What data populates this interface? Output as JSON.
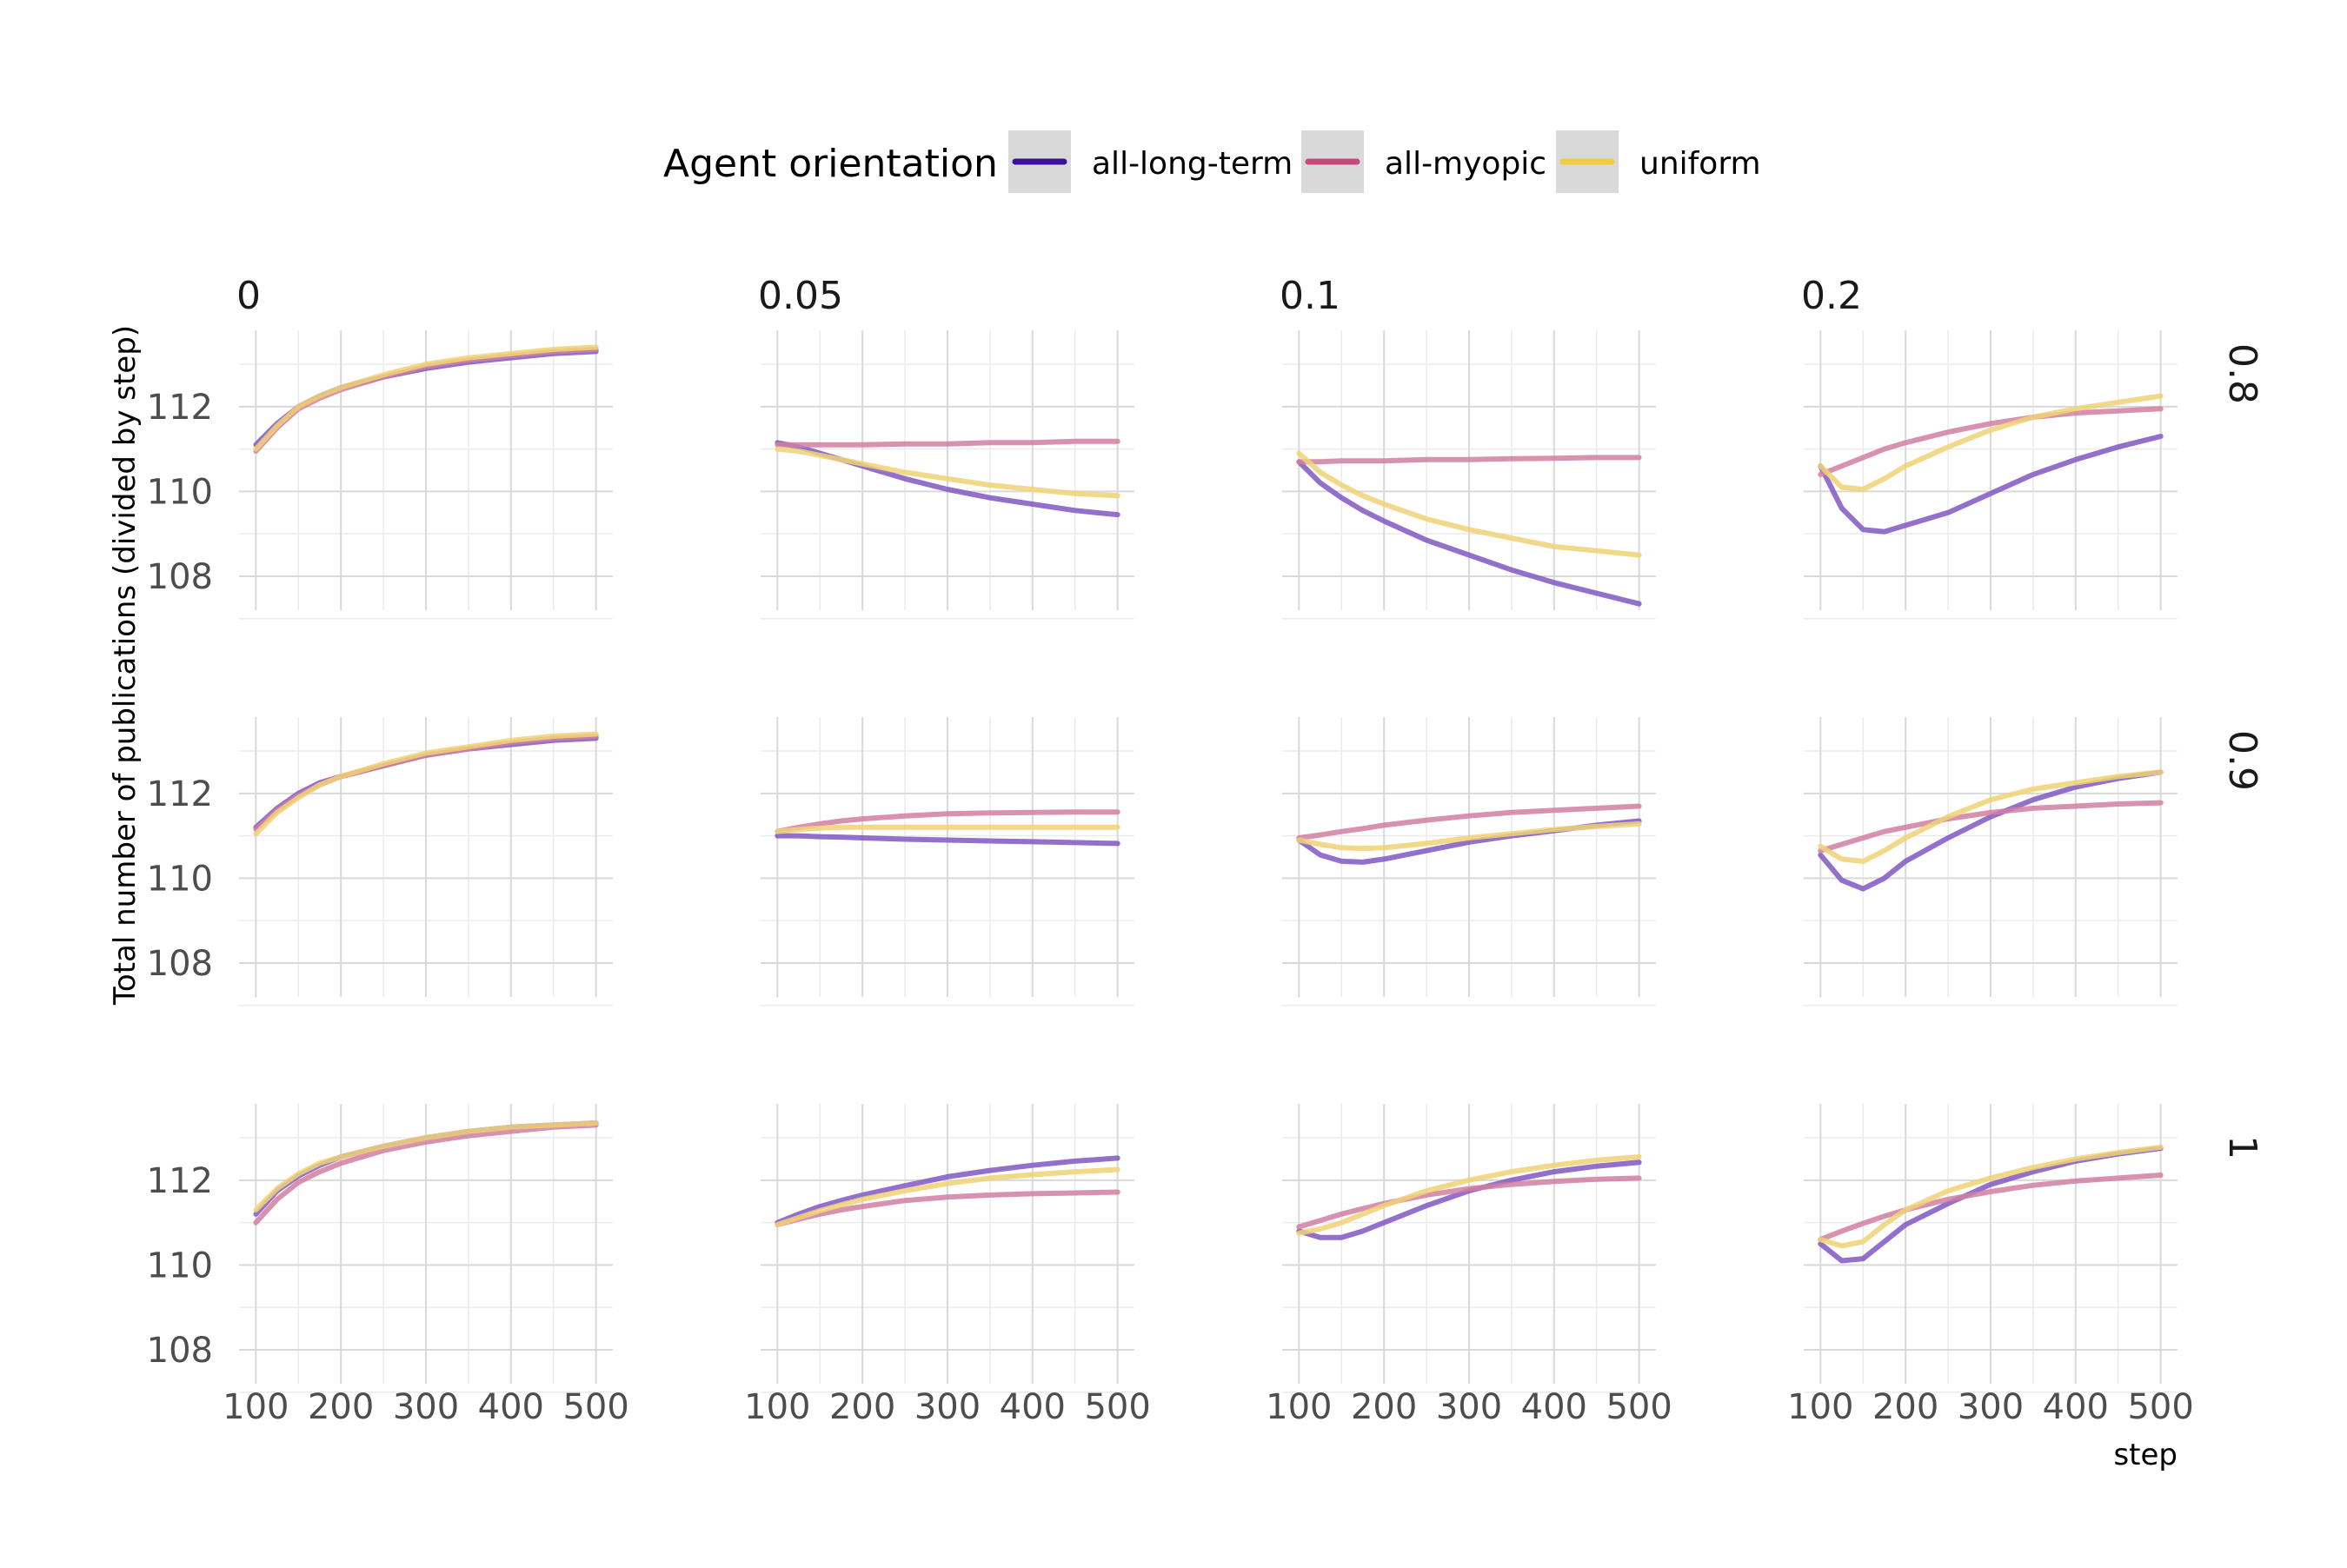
{
  "chart_data": {
    "type": "line",
    "xlabel": "step",
    "ylabel": "Total number of publications (divided by step)",
    "xlim": [
      100,
      500
    ],
    "ylim": [
      107.2,
      113.8
    ],
    "x_ticks": [
      100,
      200,
      300,
      400,
      500
    ],
    "y_ticks": [
      108,
      110,
      112
    ],
    "grid": true,
    "legend": {
      "title": "Agent orientation",
      "placement": "top",
      "entries": [
        {
          "name": "all-long-term",
          "color": "#3e0f99"
        },
        {
          "name": "all-myopic",
          "color": "#c64a7c"
        },
        {
          "name": "uniform",
          "color": "#f2cb3f"
        }
      ]
    },
    "series_colors": {
      "all-long-term": "#7f57c2",
      "all-myopic": "#d17fa2",
      "uniform": "#f0d276"
    },
    "col_labels": [
      "0",
      "0.05",
      "0.1",
      "0.2"
    ],
    "row_labels": [
      "0.8",
      "0.9",
      "1"
    ],
    "x": [
      100,
      125,
      150,
      175,
      200,
      250,
      300,
      350,
      400,
      450,
      500
    ],
    "panels": [
      {
        "col": "0",
        "row": "0.8",
        "series": [
          {
            "name": "all-long-term",
            "values": [
              111.1,
              111.6,
              112.0,
              112.25,
              112.45,
              112.7,
              112.9,
              113.05,
              113.15,
              113.25,
              113.3
            ]
          },
          {
            "name": "all-myopic",
            "values": [
              110.95,
              111.5,
              111.95,
              112.2,
              112.4,
              112.7,
              112.95,
              113.1,
              113.2,
              113.3,
              113.35
            ]
          },
          {
            "name": "uniform",
            "values": [
              111.0,
              111.55,
              112.0,
              112.25,
              112.45,
              112.75,
              113.0,
              113.15,
              113.25,
              113.35,
              113.4
            ]
          }
        ]
      },
      {
        "col": "0.05",
        "row": "0.8",
        "series": [
          {
            "name": "all-long-term",
            "values": [
              111.15,
              111.05,
              110.9,
              110.75,
              110.6,
              110.3,
              110.05,
              109.85,
              109.7,
              109.55,
              109.45
            ]
          },
          {
            "name": "all-myopic",
            "values": [
              111.1,
              111.1,
              111.1,
              111.1,
              111.1,
              111.12,
              111.12,
              111.15,
              111.15,
              111.18,
              111.18
            ]
          },
          {
            "name": "uniform",
            "values": [
              111.0,
              110.95,
              110.85,
              110.75,
              110.65,
              110.45,
              110.3,
              110.15,
              110.05,
              109.95,
              109.9
            ]
          }
        ]
      },
      {
        "col": "0.1",
        "row": "0.8",
        "series": [
          {
            "name": "all-long-term",
            "values": [
              110.7,
              110.2,
              109.85,
              109.55,
              109.3,
              108.85,
              108.5,
              108.15,
              107.85,
              107.6,
              107.35
            ]
          },
          {
            "name": "all-myopic",
            "values": [
              110.7,
              110.7,
              110.72,
              110.72,
              110.72,
              110.75,
              110.75,
              110.77,
              110.78,
              110.8,
              110.8
            ]
          },
          {
            "name": "uniform",
            "values": [
              110.9,
              110.45,
              110.15,
              109.9,
              109.7,
              109.35,
              109.1,
              108.9,
              108.7,
              108.6,
              108.5
            ]
          }
        ]
      },
      {
        "col": "0.2",
        "row": "0.8",
        "series": [
          {
            "name": "all-long-term",
            "values": [
              110.6,
              109.6,
              109.1,
              109.05,
              109.2,
              109.5,
              109.95,
              110.4,
              110.75,
              111.05,
              111.3
            ]
          },
          {
            "name": "all-myopic",
            "values": [
              110.4,
              110.6,
              110.8,
              111.0,
              111.15,
              111.4,
              111.6,
              111.75,
              111.85,
              111.9,
              111.95
            ]
          },
          {
            "name": "uniform",
            "values": [
              110.6,
              110.1,
              110.05,
              110.3,
              110.6,
              111.05,
              111.45,
              111.75,
              111.95,
              112.1,
              112.25
            ]
          }
        ]
      },
      {
        "col": "0",
        "row": "0.9",
        "series": [
          {
            "name": "all-long-term",
            "values": [
              111.2,
              111.65,
              112.0,
              112.25,
              112.4,
              112.65,
              112.9,
              113.05,
              113.15,
              113.25,
              113.3
            ]
          },
          {
            "name": "all-myopic",
            "values": [
              111.15,
              111.6,
              111.95,
              112.2,
              112.4,
              112.65,
              112.9,
              113.05,
              113.2,
              113.3,
              113.35
            ]
          },
          {
            "name": "uniform",
            "values": [
              111.05,
              111.55,
              111.9,
              112.2,
              112.4,
              112.7,
              112.95,
              113.1,
              113.25,
              113.35,
              113.4
            ]
          }
        ]
      },
      {
        "col": "0.05",
        "row": "0.9",
        "series": [
          {
            "name": "all-long-term",
            "values": [
              111.0,
              111.0,
              110.98,
              110.97,
              110.95,
              110.92,
              110.9,
              110.88,
              110.86,
              110.84,
              110.82
            ]
          },
          {
            "name": "all-myopic",
            "values": [
              111.1,
              111.2,
              111.28,
              111.35,
              111.4,
              111.47,
              111.52,
              111.54,
              111.55,
              111.56,
              111.56
            ]
          },
          {
            "name": "uniform",
            "values": [
              111.1,
              111.15,
              111.18,
              111.2,
              111.2,
              111.2,
              111.2,
              111.2,
              111.2,
              111.2,
              111.2
            ]
          }
        ]
      },
      {
        "col": "0.1",
        "row": "0.9",
        "series": [
          {
            "name": "all-long-term",
            "values": [
              110.9,
              110.55,
              110.4,
              110.38,
              110.45,
              110.65,
              110.85,
              111.0,
              111.12,
              111.25,
              111.35
            ]
          },
          {
            "name": "all-myopic",
            "values": [
              110.95,
              111.02,
              111.1,
              111.17,
              111.25,
              111.37,
              111.47,
              111.55,
              111.6,
              111.65,
              111.7
            ]
          },
          {
            "name": "uniform",
            "values": [
              110.9,
              110.8,
              110.72,
              110.7,
              110.72,
              110.82,
              110.95,
              111.05,
              111.15,
              111.22,
              111.28
            ]
          }
        ]
      },
      {
        "col": "0.2",
        "row": "0.9",
        "series": [
          {
            "name": "all-long-term",
            "values": [
              110.55,
              109.95,
              109.75,
              110.0,
              110.4,
              110.95,
              111.45,
              111.85,
              112.15,
              112.35,
              112.5
            ]
          },
          {
            "name": "all-myopic",
            "values": [
              110.65,
              110.8,
              110.95,
              111.1,
              111.2,
              111.4,
              111.55,
              111.65,
              111.7,
              111.75,
              111.78
            ]
          },
          {
            "name": "uniform",
            "values": [
              110.75,
              110.45,
              110.4,
              110.65,
              110.95,
              111.45,
              111.85,
              112.1,
              112.25,
              112.4,
              112.5
            ]
          }
        ]
      },
      {
        "col": "0",
        "row": "1",
        "series": [
          {
            "name": "all-long-term",
            "values": [
              111.2,
              111.75,
              112.1,
              112.35,
              112.55,
              112.8,
              113.0,
              113.15,
              113.25,
              113.3,
              113.35
            ]
          },
          {
            "name": "all-myopic",
            "values": [
              111.0,
              111.55,
              111.95,
              112.2,
              112.4,
              112.7,
              112.9,
              113.05,
              113.15,
              113.25,
              113.3
            ]
          },
          {
            "name": "uniform",
            "values": [
              111.3,
              111.8,
              112.15,
              112.4,
              112.55,
              112.8,
              113.0,
              113.15,
              113.25,
              113.3,
              113.35
            ]
          }
        ]
      },
      {
        "col": "0.05",
        "row": "1",
        "series": [
          {
            "name": "all-long-term",
            "values": [
              111.0,
              111.2,
              111.38,
              111.52,
              111.65,
              111.87,
              112.08,
              112.23,
              112.35,
              112.45,
              112.52
            ]
          },
          {
            "name": "all-myopic",
            "values": [
              110.95,
              111.08,
              111.2,
              111.3,
              111.38,
              111.52,
              111.6,
              111.65,
              111.68,
              111.7,
              111.72
            ]
          },
          {
            "name": "uniform",
            "values": [
              110.95,
              111.12,
              111.28,
              111.42,
              111.55,
              111.75,
              111.92,
              112.05,
              112.13,
              112.2,
              112.25
            ]
          }
        ]
      },
      {
        "col": "0.1",
        "row": "1",
        "series": [
          {
            "name": "all-long-term",
            "values": [
              110.8,
              110.65,
              110.65,
              110.8,
              111.0,
              111.4,
              111.75,
              112.0,
              112.2,
              112.33,
              112.42
            ]
          },
          {
            "name": "all-myopic",
            "values": [
              110.9,
              111.05,
              111.2,
              111.33,
              111.45,
              111.65,
              111.8,
              111.9,
              111.97,
              112.02,
              112.05
            ]
          },
          {
            "name": "uniform",
            "values": [
              110.75,
              110.85,
              111.0,
              111.2,
              111.4,
              111.75,
              112.0,
              112.2,
              112.35,
              112.47,
              112.55
            ]
          }
        ]
      },
      {
        "col": "0.2",
        "row": "1",
        "series": [
          {
            "name": "all-long-term",
            "values": [
              110.5,
              110.1,
              110.15,
              110.55,
              110.95,
              111.45,
              111.9,
              112.2,
              112.45,
              112.62,
              112.75
            ]
          },
          {
            "name": "all-myopic",
            "values": [
              110.6,
              110.8,
              110.98,
              111.15,
              111.3,
              111.55,
              111.73,
              111.88,
              111.98,
              112.05,
              112.12
            ]
          },
          {
            "name": "uniform",
            "values": [
              110.6,
              110.45,
              110.55,
              110.95,
              111.3,
              111.75,
              112.05,
              112.3,
              112.5,
              112.65,
              112.78
            ]
          }
        ]
      }
    ]
  }
}
